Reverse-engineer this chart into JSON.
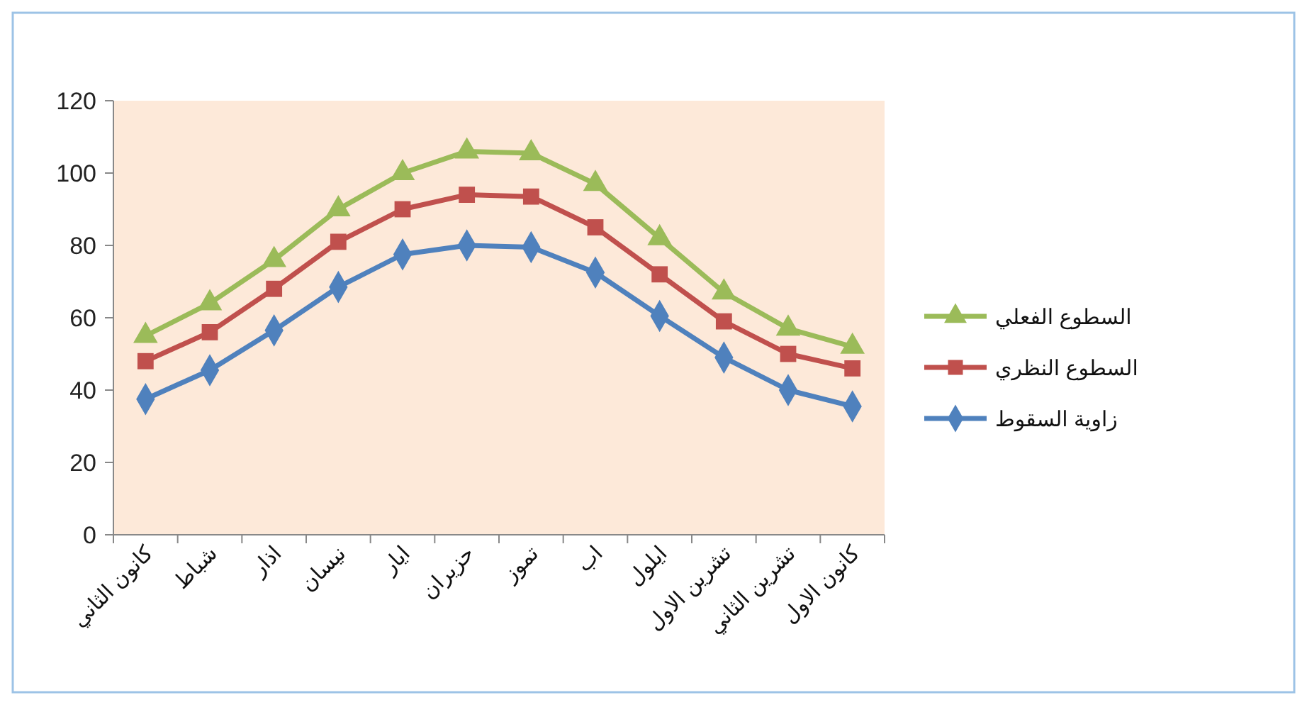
{
  "chart_data": {
    "type": "line",
    "categories": [
      "كانون الثاني",
      "شباط",
      "اذار",
      "نيسان",
      "ايار",
      "حزيران",
      "تموز",
      "اب",
      "ايلول",
      "تشرين الاول",
      "تشرين الثاني",
      "كانون الاول"
    ],
    "series": [
      {
        "name": "السطوع الفعلي",
        "color": "#9bbb59",
        "marker": "triangle",
        "values": [
          55,
          64,
          76,
          90,
          100,
          106,
          105.5,
          97,
          82,
          67,
          57,
          52
        ]
      },
      {
        "name": "السطوع النظري",
        "color": "#c0504d",
        "marker": "square",
        "values": [
          48,
          56,
          68,
          81,
          90,
          94,
          93.5,
          85,
          72,
          59,
          50,
          46
        ]
      },
      {
        "name": "زاوية السقوط",
        "color": "#4f81bd",
        "marker": "diamond",
        "values": [
          37.5,
          45.5,
          56.5,
          68.5,
          77.5,
          80,
          79.5,
          72.5,
          60.5,
          49,
          40,
          35.5
        ]
      }
    ],
    "ylim": [
      0,
      120
    ],
    "yticks": [
      0,
      20,
      40,
      60,
      80,
      100,
      120
    ],
    "grid": false,
    "legend": "right",
    "line_style": "solid"
  }
}
